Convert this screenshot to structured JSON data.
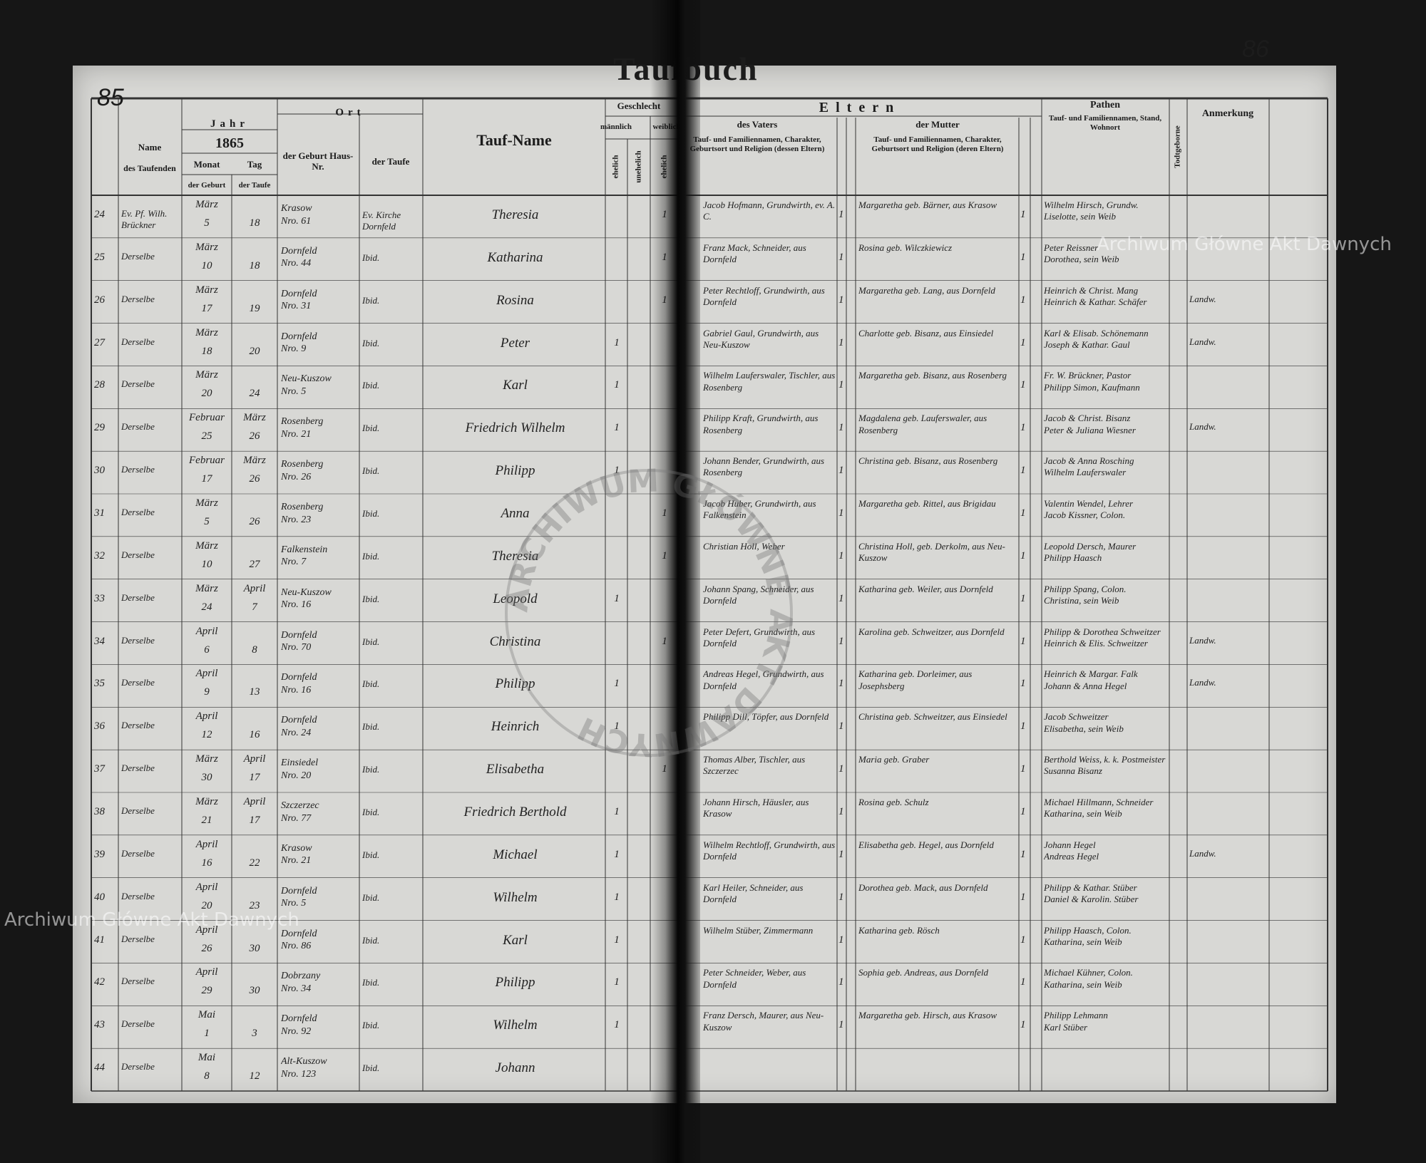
{
  "page_numbers": {
    "left": "85",
    "right": "86"
  },
  "title": "Taufbuch",
  "watermarks": [
    "Archiwum Główne Akt Dawnych",
    "Archiwum Główne Akt Dawnych"
  ],
  "stamp": "ARCHIWUM GŁÓWNE AKT DAWNYCH",
  "headers": {
    "name": "Name",
    "name_sub": "des Taufenden",
    "jahr": "Jahr",
    "year": "1865",
    "monat": "Monat",
    "tag": "Tag",
    "monat_sub": "der Geburt",
    "tag_sub": "der Taufe",
    "ort": "Ort",
    "ort_geburt": "der Geburt Haus-Nr.",
    "ort_taufe": "der Taufe",
    "taufname": "Tauf-Name",
    "geschlecht": "Geschlecht",
    "maennlich": "männlich",
    "weiblich": "weiblich",
    "ehelich_m": "ehelich",
    "unehelich_m": "unehelich",
    "ehelich_w": "ehelich",
    "eltern": "Eltern",
    "vater": "des Vaters",
    "vater_sub": "Tauf- und Familiennamen, Charakter, Geburtsort und Religion (dessen Eltern)",
    "mutter": "der Mutter",
    "mutter_sub": "Tauf- und Familiennamen, Charakter, Geburtsort und Religion (deren Eltern)",
    "pathen": "Pathen",
    "pathen_sub": "Tauf- und Familiennamen, Stand, Wohnort",
    "todtgeborne": "Todtgeborne",
    "anmerkung": "Anmerkung"
  },
  "rows": [
    {
      "nr": 24,
      "pastor": "Ev. Pf. Wilh. Brückner",
      "birth_month": "März",
      "birth_day": 5,
      "baptism_day": 18,
      "birth_place": "Krasow\nNro. 61",
      "baptism_place": "Ev. Kirche Dornfeld",
      "name": "Theresia",
      "female_legit": 1,
      "father": "Jacob Hofmann, Grundwirth, ev. A. C.",
      "father_mark": 1,
      "mother": "Margaretha geb. Bärner, aus Krasow",
      "mother_mark": 1,
      "godparents": "Wilhelm Hirsch, Grundw.\nLiselotte, sein Weib"
    },
    {
      "nr": 25,
      "pastor": "Derselbe",
      "birth_month": "März",
      "birth_day": 10,
      "baptism_day": 18,
      "birth_place": "Dornfeld\nNro. 44",
      "baptism_place": "Ibid.",
      "name": "Katharina",
      "female_legit": 1,
      "father": "Franz Mack, Schneider, aus Dornfeld",
      "father_mark": 1,
      "mother": "Rosina geb. Wilczkiewicz",
      "mother_mark": 1,
      "godparents": "Peter Reissner\nDorothea, sein Weib"
    },
    {
      "nr": 26,
      "pastor": "Derselbe",
      "birth_month": "März",
      "birth_day": 17,
      "baptism_day": 19,
      "birth_place": "Dornfeld\nNro. 31",
      "baptism_place": "Ibid.",
      "name": "Rosina",
      "female_legit": 1,
      "father": "Peter Rechtloff, Grundwirth, aus Dornfeld",
      "father_mark": 1,
      "mother": "Margaretha geb. Lang, aus Dornfeld",
      "mother_mark": 1,
      "godparents": "Heinrich & Christ. Mang\nHeinrich & Kathar. Schäfer",
      "remark": "Landw."
    },
    {
      "nr": 27,
      "pastor": "Derselbe",
      "birth_month": "März",
      "birth_day": 18,
      "baptism_day": 20,
      "birth_place": "Dornfeld\nNro. 9",
      "baptism_place": "Ibid.",
      "name": "Peter",
      "male_legit": 1,
      "father": "Gabriel Gaul, Grundwirth, aus Neu-Kuszow",
      "father_mark": 1,
      "mother": "Charlotte geb. Bisanz, aus Einsiedel",
      "mother_mark": 1,
      "godparents": "Karl & Elisab. Schönemann\nJoseph & Kathar. Gaul",
      "remark": "Landw."
    },
    {
      "nr": 28,
      "pastor": "Derselbe",
      "birth_month": "März",
      "birth_day": 20,
      "baptism_day": 24,
      "birth_place": "Neu-Kuszow\nNro. 5",
      "baptism_place": "Ibid.",
      "name": "Karl",
      "male_legit": 1,
      "father": "Wilhelm Lauferswaler, Tischler, aus Rosenberg",
      "father_mark": 1,
      "mother": "Margaretha geb. Bisanz, aus Rosenberg",
      "mother_mark": 1,
      "godparents": "Fr. W. Brückner, Pastor\nPhilipp Simon, Kaufmann"
    },
    {
      "nr": 29,
      "pastor": "Derselbe",
      "birth_month": "Februar",
      "baptism_month": "März",
      "birth_day": 25,
      "baptism_day": 26,
      "birth_place": "Rosenberg\nNro. 21",
      "baptism_place": "Ibid.",
      "name": "Friedrich Wilhelm",
      "male_legit": 1,
      "father": "Philipp Kraft, Grundwirth, aus Rosenberg",
      "father_mark": 1,
      "mother": "Magdalena geb. Lauferswaler, aus Rosenberg",
      "mother_mark": 1,
      "godparents": "Jacob & Christ. Bisanz\nPeter & Juliana Wiesner",
      "remark": "Landw."
    },
    {
      "nr": 30,
      "pastor": "Derselbe",
      "birth_month": "Februar",
      "baptism_month": "März",
      "birth_day": 17,
      "baptism_day": 26,
      "birth_place": "Rosenberg\nNro. 26",
      "baptism_place": "Ibid.",
      "name": "Philipp",
      "male_legit": 1,
      "father": "Johann Bender, Grundwirth, aus Rosenberg",
      "father_mark": 1,
      "mother": "Christina geb. Bisanz, aus Rosenberg",
      "mother_mark": 1,
      "godparents": "Jacob & Anna Rosching\nWilhelm Lauferswaler"
    },
    {
      "nr": 31,
      "pastor": "Derselbe",
      "birth_month": "März",
      "birth_day": 5,
      "baptism_day": 26,
      "birth_place": "Rosenberg\nNro. 23",
      "baptism_place": "Ibid.",
      "name": "Anna",
      "female_legit": 1,
      "father": "Jacob Huber, Grundwirth, aus Falkenstein",
      "father_mark": 1,
      "mother": "Margaretha geb. Rittel, aus Brigidau",
      "mother_mark": 1,
      "godparents": "Valentin Wendel, Lehrer\nJacob Kissner, Colon."
    },
    {
      "nr": 32,
      "pastor": "Derselbe",
      "birth_month": "März",
      "birth_day": 10,
      "baptism_day": 27,
      "birth_place": "Falkenstein\nNro. 7",
      "baptism_place": "Ibid.",
      "name": "Theresia",
      "female_legit": 1,
      "father": "Christian Holl, Weber",
      "father_mark": 1,
      "mother": "Christina Holl, geb. Derkolm, aus Neu-Kuszow",
      "mother_mark": 1,
      "godparents": "Leopold Dersch, Maurer\nPhilipp Haasch"
    },
    {
      "nr": 33,
      "pastor": "Derselbe",
      "birth_month": "März",
      "baptism_month": "April",
      "birth_day": 24,
      "baptism_day": 7,
      "birth_place": "Neu-Kuszow\nNro. 16",
      "baptism_place": "Ibid.",
      "name": "Leopold",
      "male_legit": 1,
      "father": "Johann Spang, Schneider, aus Dornfeld",
      "father_mark": 1,
      "mother": "Katharina geb. Weiler, aus Dornfeld",
      "mother_mark": 1,
      "godparents": "Philipp Spang, Colon.\nChristina, sein Weib"
    },
    {
      "nr": 34,
      "pastor": "Derselbe",
      "birth_month": "April",
      "birth_day": 6,
      "baptism_day": 8,
      "birth_place": "Dornfeld\nNro. 70",
      "baptism_place": "Ibid.",
      "name": "Christina",
      "female_legit": 1,
      "father": "Peter Defert, Grundwirth, aus Dornfeld",
      "father_mark": 1,
      "mother": "Karolina geb. Schweitzer, aus Dornfeld",
      "mother_mark": 1,
      "godparents": "Philipp & Dorothea Schweitzer\nHeinrich & Elis. Schweitzer",
      "remark": "Landw."
    },
    {
      "nr": 35,
      "pastor": "Derselbe",
      "birth_month": "April",
      "birth_day": 9,
      "baptism_day": 13,
      "birth_place": "Dornfeld\nNro. 16",
      "baptism_place": "Ibid.",
      "name": "Philipp",
      "male_legit": 1,
      "father": "Andreas Hegel, Grundwirth, aus Dornfeld",
      "father_mark": 1,
      "mother": "Katharina geb. Dorleimer, aus Josephsberg",
      "mother_mark": 1,
      "godparents": "Heinrich & Margar. Falk\nJohann & Anna Hegel",
      "remark": "Landw."
    },
    {
      "nr": 36,
      "pastor": "Derselbe",
      "birth_month": "April",
      "birth_day": 12,
      "baptism_day": 16,
      "birth_place": "Dornfeld\nNro. 24",
      "baptism_place": "Ibid.",
      "name": "Heinrich",
      "male_legit": 1,
      "father": "Philipp Dill, Töpfer, aus Dornfeld",
      "father_mark": 1,
      "mother": "Christina geb. Schweitzer, aus Einsiedel",
      "mother_mark": 1,
      "godparents": "Jacob Schweitzer\nElisabetha, sein Weib"
    },
    {
      "nr": 37,
      "pastor": "Derselbe",
      "birth_month": "März",
      "baptism_month": "April",
      "birth_day": 30,
      "baptism_day": 17,
      "birth_place": "Einsiedel\nNro. 20",
      "baptism_place": "Ibid.",
      "name": "Elisabetha",
      "female_legit": 1,
      "father": "Thomas Alber, Tischler, aus Szczerzec",
      "father_mark": 1,
      "mother": "Maria geb. Graber",
      "mother_mark": 1,
      "godparents": "Berthold Weiss, k. k. Postmeister\nSusanna Bisanz"
    },
    {
      "nr": 38,
      "pastor": "Derselbe",
      "birth_month": "März",
      "baptism_month": "April",
      "birth_day": 21,
      "baptism_day": 17,
      "birth_place": "Szczerzec\nNro. 77",
      "baptism_place": "Ibid.",
      "name": "Friedrich Berthold",
      "male_legit": 1,
      "father": "Johann Hirsch, Häusler, aus Krasow",
      "father_mark": 1,
      "mother": "Rosina geb. Schulz",
      "mother_mark": 1,
      "godparents": "Michael Hillmann, Schneider\nKatharina, sein Weib"
    },
    {
      "nr": 39,
      "pastor": "Derselbe",
      "birth_month": "April",
      "birth_day": 16,
      "baptism_day": 22,
      "birth_place": "Krasow\nNro. 21",
      "baptism_place": "Ibid.",
      "name": "Michael",
      "male_legit": 1,
      "father": "Wilhelm Rechtloff, Grundwirth, aus Dornfeld",
      "father_mark": 1,
      "mother": "Elisabetha geb. Hegel, aus Dornfeld",
      "mother_mark": 1,
      "godparents": "Johann Hegel\nAndreas Hegel",
      "remark": "Landw."
    },
    {
      "nr": 40,
      "pastor": "Derselbe",
      "birth_month": "April",
      "birth_day": 20,
      "baptism_day": 23,
      "birth_place": "Dornfeld\nNro. 5",
      "baptism_place": "Ibid.",
      "name": "Wilhelm",
      "male_legit": 1,
      "father": "Karl Heiler, Schneider, aus Dornfeld",
      "father_mark": 1,
      "mother": "Dorothea geb. Mack, aus Dornfeld",
      "mother_mark": 1,
      "godparents": "Philipp & Kathar. Stüber\nDaniel & Karolin. Stüber"
    },
    {
      "nr": 41,
      "pastor": "Derselbe",
      "birth_month": "April",
      "birth_day": 26,
      "baptism_day": 30,
      "birth_place": "Dornfeld\nNro. 86",
      "baptism_place": "Ibid.",
      "name": "Karl",
      "male_legit": 1,
      "father": "Wilhelm Stüber, Zimmermann",
      "father_mark": 1,
      "mother": "Katharina geb. Rösch",
      "mother_mark": 1,
      "godparents": "Philipp Haasch, Colon.\nKatharina, sein Weib"
    },
    {
      "nr": 42,
      "pastor": "Derselbe",
      "birth_month": "April",
      "birth_day": 29,
      "baptism_day": 30,
      "birth_place": "Dobrzany\nNro. 34",
      "baptism_place": "Ibid.",
      "name": "Philipp",
      "male_legit": 1,
      "father": "Peter Schneider, Weber, aus Dornfeld",
      "father_mark": 1,
      "mother": "Sophia geb. Andreas, aus Dornfeld",
      "mother_mark": 1,
      "godparents": "Michael Kühner, Colon.\nKatharina, sein Weib"
    },
    {
      "nr": 43,
      "pastor": "Derselbe",
      "birth_month": "Mai",
      "birth_day": 1,
      "baptism_day": 3,
      "birth_place": "Dornfeld\nNro. 92",
      "baptism_place": "Ibid.",
      "name": "Wilhelm",
      "male_legit": 1,
      "father": "Franz Dersch, Maurer, aus Neu-Kuszow",
      "father_mark": 1,
      "mother": "Margaretha geb. Hirsch, aus Krasow",
      "mother_mark": 1,
      "godparents": "Philipp Lehmann\nKarl Stüber"
    },
    {
      "nr": 44,
      "pastor": "Derselbe",
      "birth_month": "Mai",
      "birth_day": 8,
      "baptism_day": 12,
      "birth_place": "Alt-Kuszow\nNro. 123",
      "baptism_place": "Ibid.",
      "name": "Johann"
    }
  ]
}
